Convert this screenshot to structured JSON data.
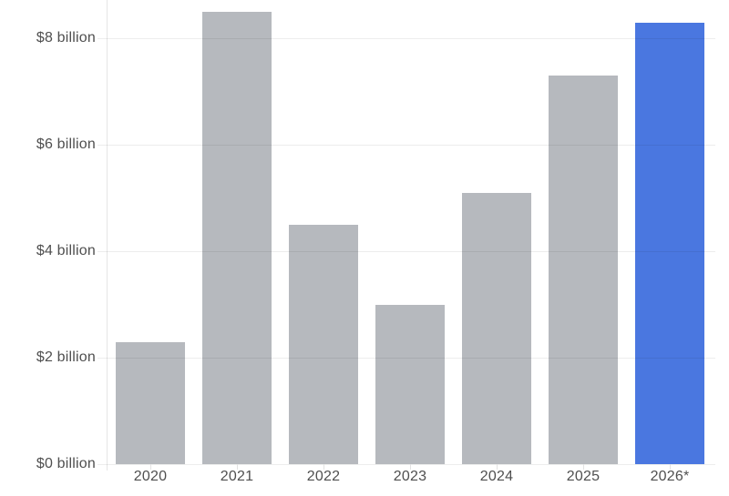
{
  "chart_data": {
    "type": "bar",
    "categories": [
      "2020",
      "2021",
      "2022",
      "2023",
      "2024",
      "2025",
      "2026*"
    ],
    "values": [
      2.3,
      8.5,
      4.5,
      3.0,
      5.1,
      7.3,
      8.3
    ],
    "highlight_index": 6,
    "title": "",
    "xlabel": "",
    "ylabel": "",
    "unit": "$ billion",
    "y_ticks": [
      {
        "value": 0,
        "label": "$0 billion"
      },
      {
        "value": 2,
        "label": "$2 billion"
      },
      {
        "value": 4,
        "label": "$4 billion"
      },
      {
        "value": 6,
        "label": "$6 billion"
      },
      {
        "value": 8,
        "label": "$8 billion"
      }
    ],
    "ylim": [
      0,
      8.7
    ],
    "grid": "horizontal",
    "legend": "none",
    "colors": {
      "bar_default": "#b6b9be",
      "bar_highlight": "#4a77e0",
      "gridline_rgba": "rgba(20,20,20,0.075)",
      "axis_line": "#e6e6e6",
      "x_tick": "#e3e3e3",
      "label_text": "#4f4f4f"
    }
  }
}
